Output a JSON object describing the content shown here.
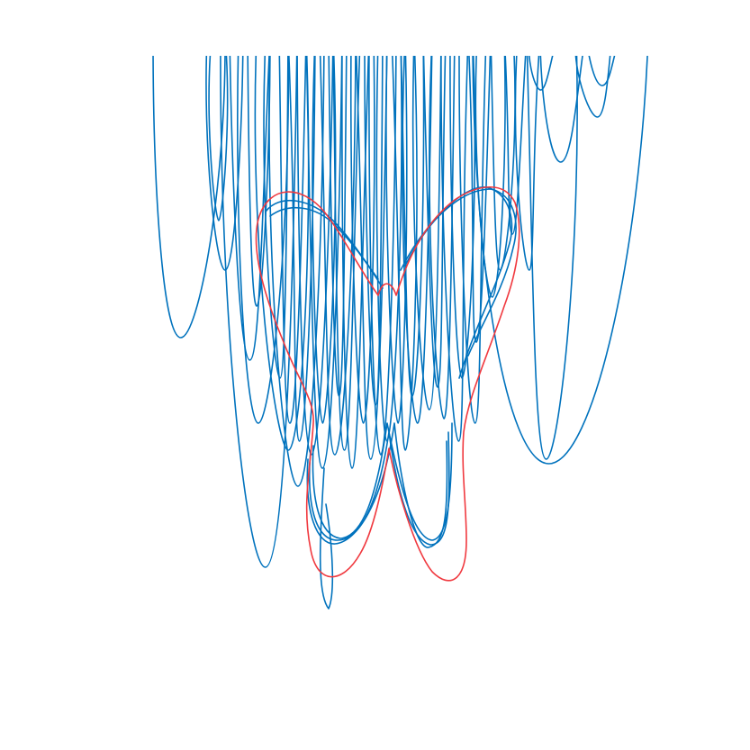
{
  "figure": {
    "description_free": true,
    "colors": {
      "background": "#ffffff",
      "samples": "#0072bd",
      "reference": "#f0393f"
    },
    "legend": "none",
    "axes_visible": false,
    "grid": false
  },
  "chart_data": {
    "type": "line",
    "title": "",
    "xlabel": "",
    "ylabel": "",
    "series": [
      {
        "role": "sample_curves",
        "color": "#0072bd",
        "count_visible_approx": 40
      },
      {
        "role": "reference_curve",
        "color": "#f0393f",
        "count_visible_approx": 1
      }
    ]
  }
}
